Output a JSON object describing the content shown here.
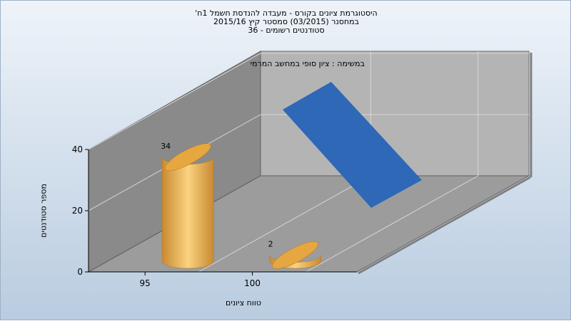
{
  "chart_data": {
    "type": "bar",
    "title_lines": [
      "היסטוגרמת ציונים בקורס - מעבדה להנדסת חשמל 1ח'",
      "במחסנר  (03/2015)  סמסטר קיץ  2015/16",
      "סטודנטים רשומים - 36"
    ],
    "series_label": "במשימה : ציון סופי במחשב המרמי",
    "xlabel": "טווח ציונים",
    "ylabel": "מספר סטודנטים",
    "categories": [
      "95",
      "100"
    ],
    "values": [
      34,
      2
    ],
    "ylim": [
      0,
      40
    ],
    "y_ticks": [
      0,
      20,
      40
    ],
    "grid": true,
    "colors": {
      "bar": "#e6a640",
      "bar_light": "#fbd27f",
      "bar_dark": "#c0802a",
      "blue_marker": "#2e68b7",
      "wall_back": "#b4b4b4",
      "wall_left": "#8a8a8a",
      "floor": "#9c9c9c"
    }
  }
}
